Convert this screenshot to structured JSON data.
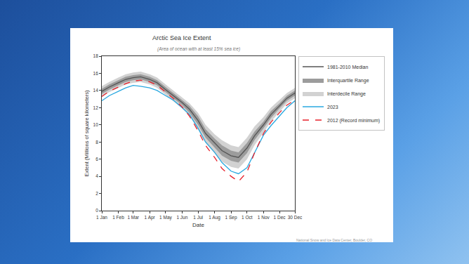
{
  "chart_data": {
    "type": "line",
    "title": "Arctic Sea Ice Extent",
    "subtitle": "(Area of ocean with at least 15% sea ice)",
    "x_label": "Date",
    "y_label": "Extent (Millions of square kilometers)",
    "credit": "National Snow and Ice Data Center, Boulder, CO",
    "x": [
      1,
      15,
      32,
      46,
      60,
      74,
      91,
      105,
      121,
      135,
      152,
      166,
      182,
      196,
      213,
      227,
      244,
      258,
      274,
      288,
      305,
      319,
      335,
      349,
      364
    ],
    "xlim": [
      1,
      364
    ],
    "xticks": [
      {
        "value": 1,
        "label": "1 Jan"
      },
      {
        "value": 32,
        "label": "1 Feb"
      },
      {
        "value": 60,
        "label": "1 Mar"
      },
      {
        "value": 91,
        "label": "1 Apr"
      },
      {
        "value": 121,
        "label": "1 May"
      },
      {
        "value": 152,
        "label": "1 Jun"
      },
      {
        "value": 182,
        "label": "1 Jul"
      },
      {
        "value": 213,
        "label": "1 Aug"
      },
      {
        "value": 244,
        "label": "1 Sep"
      },
      {
        "value": 274,
        "label": "1 Oct"
      },
      {
        "value": 305,
        "label": "1 Nov"
      },
      {
        "value": 335,
        "label": "1 Dec"
      },
      {
        "value": 364,
        "label": "30 Dec"
      }
    ],
    "ylim": [
      0,
      18
    ],
    "yticks": [
      0,
      2,
      4,
      6,
      8,
      10,
      12,
      14,
      16,
      18
    ],
    "grid": false,
    "legend": "top-right",
    "series": [
      {
        "name": "1981-2010 Median",
        "color": "#555555",
        "values": [
          13.9,
          14.4,
          14.9,
          15.3,
          15.5,
          15.6,
          15.3,
          14.9,
          14.1,
          13.4,
          12.6,
          11.8,
          10.5,
          9.0,
          7.9,
          7.0,
          6.4,
          6.2,
          7.3,
          8.7,
          10.0,
          11.2,
          12.2,
          13.1,
          13.7
        ]
      },
      {
        "name": "Interquartile Range",
        "color": "#9c9c9c",
        "type": "band",
        "lower": [
          13.6,
          14.1,
          14.6,
          15.0,
          15.2,
          15.3,
          15.0,
          14.6,
          13.8,
          13.1,
          12.3,
          11.4,
          10.0,
          8.5,
          7.3,
          6.4,
          5.8,
          5.6,
          6.7,
          8.2,
          9.6,
          10.8,
          11.9,
          12.8,
          13.4
        ],
        "upper": [
          14.2,
          14.7,
          15.2,
          15.6,
          15.8,
          15.9,
          15.6,
          15.2,
          14.4,
          13.7,
          12.9,
          12.2,
          11.0,
          9.5,
          8.4,
          7.6,
          7.0,
          6.8,
          7.9,
          9.2,
          10.4,
          11.6,
          12.5,
          13.4,
          14.0
        ]
      },
      {
        "name": "Interdecile Range",
        "color": "#d2d2d2",
        "type": "band",
        "lower": [
          13.3,
          13.8,
          14.3,
          14.7,
          14.9,
          15.0,
          14.7,
          14.3,
          13.5,
          12.8,
          11.9,
          11.0,
          9.5,
          7.9,
          6.7,
          5.7,
          5.1,
          4.9,
          6.0,
          7.6,
          9.1,
          10.4,
          11.5,
          12.5,
          13.1
        ],
        "upper": [
          14.5,
          15.0,
          15.5,
          15.9,
          16.1,
          16.2,
          15.9,
          15.5,
          14.7,
          14.0,
          13.2,
          12.5,
          11.4,
          10.0,
          8.9,
          8.2,
          7.6,
          7.4,
          8.5,
          9.8,
          10.9,
          12.0,
          12.9,
          13.7,
          14.3
        ]
      },
      {
        "name": "2023",
        "color": "#29a8e0",
        "values": [
          12.8,
          13.4,
          13.9,
          14.3,
          14.6,
          14.5,
          14.3,
          14.0,
          13.4,
          12.9,
          12.0,
          11.2,
          9.6,
          8.0,
          6.8,
          5.6,
          4.6,
          4.3,
          5.0,
          6.7,
          8.8,
          9.9,
          11.0,
          12.0,
          12.8
        ]
      },
      {
        "name": "2012 (Record minimum)",
        "color": "#e8202a",
        "line_style": "dash",
        "values": [
          13.3,
          13.9,
          14.4,
          14.8,
          15.1,
          15.2,
          15.0,
          14.6,
          13.8,
          13.1,
          12.1,
          11.0,
          9.3,
          7.6,
          6.2,
          4.9,
          4.0,
          3.4,
          4.5,
          6.7,
          9.0,
          10.3,
          11.4,
          12.3,
          12.9
        ]
      }
    ]
  }
}
